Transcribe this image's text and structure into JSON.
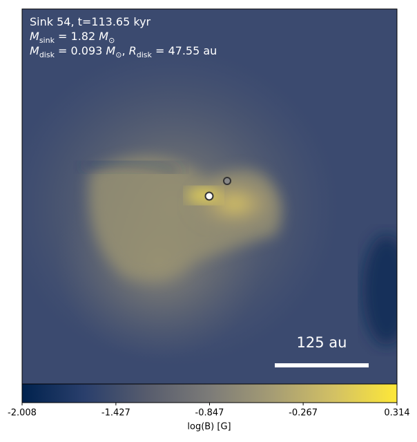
{
  "chart_data": {
    "type": "image",
    "annotations": [
      [
        {
          "text": "Sink 54, t=113.65 kyr"
        }
      ],
      [
        {
          "text": "M",
          "italic": true
        },
        {
          "sub": "sink"
        },
        {
          "text": " = 1.82 "
        },
        {
          "text": "M",
          "italic": true
        },
        {
          "sub": "⊙"
        }
      ],
      [
        {
          "text": "M",
          "italic": true
        },
        {
          "sub": "disk"
        },
        {
          "text": " = 0.093 "
        },
        {
          "text": "M",
          "italic": true
        },
        {
          "sub": "⊙"
        },
        {
          "text": ", "
        },
        {
          "text": "R",
          "italic": true
        },
        {
          "sub": "disk"
        },
        {
          "text": " = 47.55 au"
        }
      ]
    ],
    "scale_bar": "125 au",
    "colorbar": {
      "label": "log(B) [G]",
      "clim": [
        -2.008,
        0.314
      ],
      "ticks": [
        -2.008,
        -1.427,
        -0.847,
        -0.267,
        0.314
      ],
      "colormap": [
        "#00224e",
        "#2a3f6c",
        "#575c6d",
        "#7c7b78",
        "#a59c74",
        "#d3c164",
        "#fee838"
      ]
    }
  }
}
